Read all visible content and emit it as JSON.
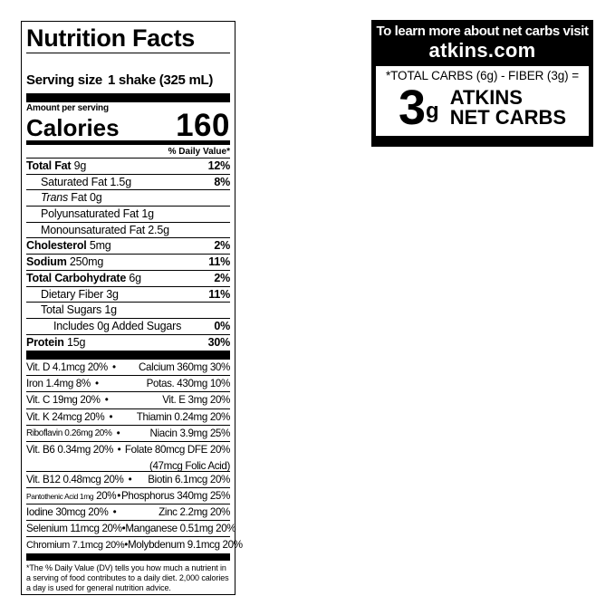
{
  "label": {
    "title": "Nutrition Facts",
    "serving_label": "Serving size",
    "serving_value": "1 shake (325 mL)",
    "amount_per_serving": "Amount per serving",
    "calories_label": "Calories",
    "calories_value": "160",
    "dv_header": "% Daily Value*",
    "nutrients": [
      {
        "name": "Total Fat",
        "amount": "9g",
        "dv": "12%"
      },
      {
        "name": "Saturated Fat 1.5g",
        "amount": "",
        "dv": "8%"
      },
      {
        "name": "Trans",
        "amount": " Fat 0g",
        "dv": ""
      },
      {
        "name": "Polyunsaturated Fat 1g",
        "amount": "",
        "dv": ""
      },
      {
        "name": "Monounsaturated Fat 2.5g",
        "amount": "",
        "dv": ""
      },
      {
        "name": "Cholesterol",
        "amount": "5mg",
        "dv": "2%"
      },
      {
        "name": "Sodium",
        "amount": "250mg",
        "dv": "11%"
      },
      {
        "name": "Total Carbohydrate",
        "amount": "6g",
        "dv": "2%"
      },
      {
        "name": "Dietary Fiber 3g",
        "amount": "",
        "dv": "11%"
      },
      {
        "name": "Total Sugars 1g",
        "amount": "",
        "dv": ""
      },
      {
        "name": "Includes 0g Added Sugars",
        "amount": "",
        "dv": "0%"
      },
      {
        "name": "Protein",
        "amount": "15g",
        "dv": "30%"
      }
    ],
    "vitamins": [
      {
        "left": "Vit. D 4.1mcg 20%",
        "right": "Calcium 360mg 30%"
      },
      {
        "left": "Iron 1.4mg 8%",
        "right": "Potas. 430mg 10%"
      },
      {
        "left": "Vit. C 19mg 20%",
        "right": "Vit. E 3mg 20%"
      },
      {
        "left": "Vit. K 24mcg 20%",
        "right": "Thiamin 0.24mg 20%"
      },
      {
        "left": "Riboflavin 0.26mg 20%",
        "right": "Niacin 3.9mg 25%"
      },
      {
        "left": "Vit. B6 0.34mg 20%",
        "right": "Folate 80mcg DFE 20%",
        "right2": "(47mcg Folic Acid)"
      },
      {
        "left": "Vit. B12 0.48mcg 20%",
        "right": "Biotin 6.1mcg 20%"
      },
      {
        "left_small": "Pantothenic Acid 1mg",
        "left": "20%",
        "right": "Phosphorus 340mg 25%"
      },
      {
        "left": "Iodine 30mcg 20%",
        "right": "Zinc 2.2mg 20%"
      },
      {
        "left": "Selenium 11mcg 20%",
        "right": "Manganese 0.51mg 20%"
      },
      {
        "left": "Chromium 7.1mcg 20%",
        "right": "Molybdenum 9.1mcg 20%"
      }
    ],
    "separator": "•",
    "footnote": "*The % Daily Value (DV) tells you how much a nutrient in a serving of food contributes to a daily diet. 2,000 calories a day is used for general nutrition advice."
  },
  "net_carbs": {
    "line1": "To learn more about net carbs visit",
    "website": "atkins.com",
    "formula": "*TOTAL CARBS (6g) - FIBER (3g) =",
    "value": "3",
    "unit": "g",
    "label1": "ATKINS",
    "label2": "NET CARBS"
  }
}
